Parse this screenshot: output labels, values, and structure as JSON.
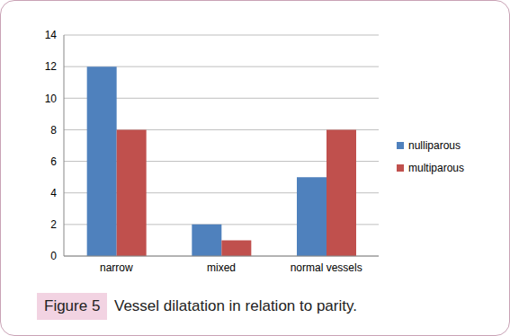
{
  "chart_data": {
    "type": "bar",
    "title": "Vessel dilatation in relation to parity.",
    "annotations": [
      "Figure 5"
    ],
    "categories": [
      "narrow",
      "mixed",
      "normal vessels"
    ],
    "series": [
      {
        "name": "nulliparous",
        "color": "#4f81bd",
        "values": [
          12,
          2,
          5
        ]
      },
      {
        "name": "multiparous",
        "color": "#c0504d",
        "values": [
          8,
          1,
          8
        ]
      }
    ],
    "ylim": [
      0,
      14
    ],
    "yticks": [
      0,
      2,
      4,
      6,
      8,
      10,
      12,
      14
    ],
    "grid": true,
    "legend": "right"
  }
}
